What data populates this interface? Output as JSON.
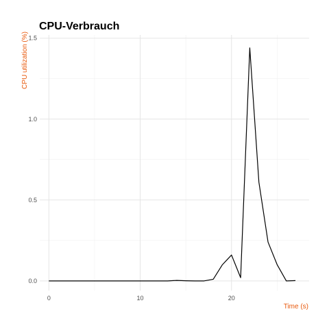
{
  "colors": {
    "axis_label": "#e8590c",
    "line": "#000000",
    "grid_major": "#e5e5e5",
    "grid_minor": "#f2f2f2",
    "tick_text": "#4d4d4d",
    "title": "#000000"
  },
  "chart_data": {
    "type": "line",
    "title": "CPU-Verbrauch",
    "xlabel": "Time (s)",
    "ylabel": "CPU utilization (%)",
    "xlim": [
      -1,
      28.5
    ],
    "ylim": [
      -0.06,
      1.52
    ],
    "x_ticks": [
      0,
      10,
      20
    ],
    "x_tick_labels": [
      "0",
      "10",
      "20"
    ],
    "y_ticks": [
      0.0,
      0.5,
      1.0,
      1.5
    ],
    "y_tick_labels": [
      "0.0",
      "0.5",
      "1.0",
      "1.5"
    ],
    "x_minor": [
      5,
      15,
      25
    ],
    "y_minor": [
      0.25,
      0.75,
      1.25
    ],
    "grid": true,
    "legend": "none",
    "series": [
      {
        "x": [
          0,
          1,
          2,
          3,
          4,
          5,
          6,
          7,
          8,
          9,
          10,
          11,
          12,
          13,
          14,
          15,
          16,
          17,
          18,
          19,
          20,
          21,
          22,
          23,
          24,
          25,
          26,
          27
        ],
        "y": [
          0,
          0,
          0,
          0,
          0,
          0,
          0,
          0,
          0,
          0,
          0,
          0,
          0,
          0,
          0.003,
          0.001,
          0,
          0,
          0.01,
          0.1,
          0.16,
          0.02,
          1.44,
          0.61,
          0.24,
          0.1,
          0,
          0.002
        ]
      }
    ]
  }
}
